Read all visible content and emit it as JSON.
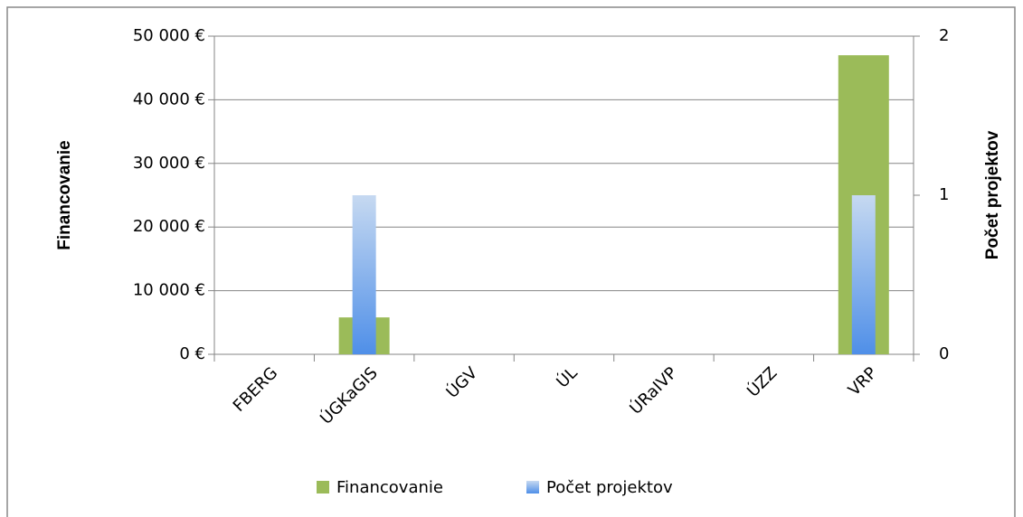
{
  "chart_data": {
    "type": "bar",
    "categories": [
      "FBERG",
      "ÚGKaGIS",
      "ÚGV",
      "ÚL",
      "ÚRaIVP",
      "ÚZZ",
      "VRP"
    ],
    "series": [
      {
        "name": "Financovanie",
        "color": "#9bbb59",
        "values": [
          0,
          5800,
          0,
          0,
          0,
          0,
          47000
        ]
      },
      {
        "name": "Počet projektov",
        "color": "#4f8fe8",
        "axis": "y2",
        "values": [
          0,
          1,
          0,
          0,
          0,
          0,
          1
        ]
      }
    ],
    "y_label": "Financovanie",
    "y2_label": "Počet projektov",
    "ylim": [
      0,
      50000
    ],
    "yticks": [
      {
        "value": 0,
        "label": "0 €"
      },
      {
        "value": 10000,
        "label": "10 000 €"
      },
      {
        "value": 20000,
        "label": "20 000 €"
      },
      {
        "value": 30000,
        "label": "30 000 €"
      },
      {
        "value": 40000,
        "label": "40 000 €"
      },
      {
        "value": 50000,
        "label": "50 000 €"
      }
    ],
    "y2lim": [
      0,
      2
    ],
    "y2ticks": [
      0,
      1,
      2
    ],
    "grid": true,
    "legend": "bottom"
  }
}
